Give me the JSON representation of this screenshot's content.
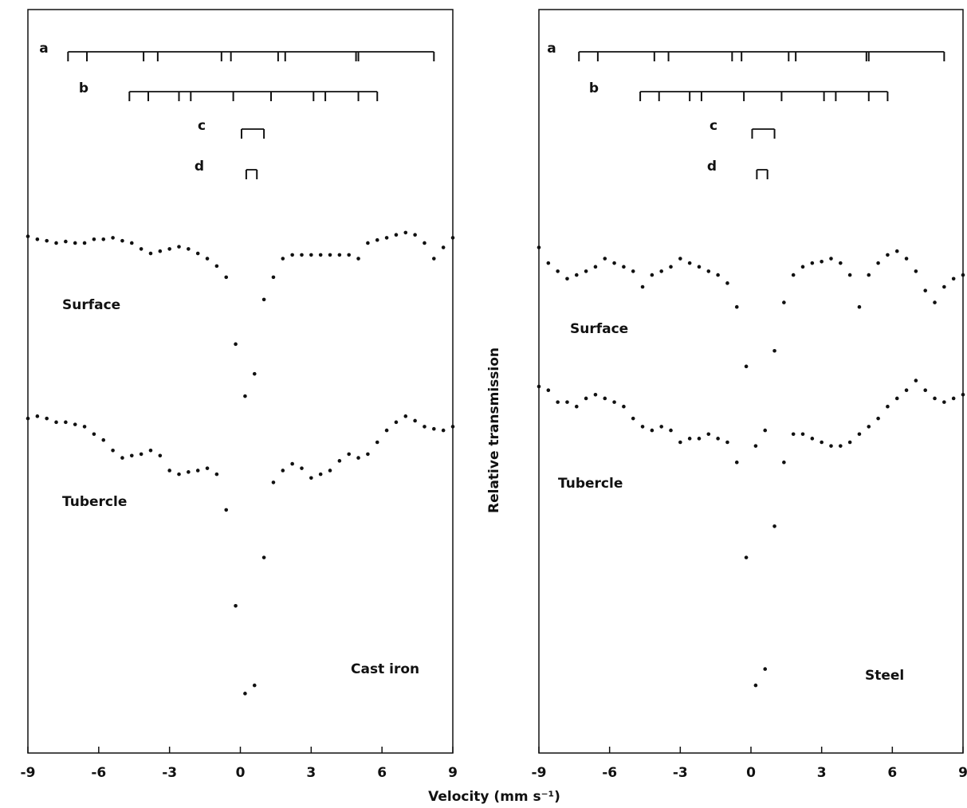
{
  "chart_data": [
    {
      "type": "scatter",
      "annotation": "Cast iron",
      "x": [
        -9,
        -8.6,
        -8.2,
        -7.8,
        -7.4,
        -7,
        -6.6,
        -6.2,
        -5.8,
        -5.4,
        -5,
        -4.6,
        -4.2,
        -3.8,
        -3.4,
        -3,
        -2.6,
        -2.2,
        -1.8,
        -1.4,
        -1,
        -0.6,
        -0.2,
        0.2,
        0.6,
        1,
        1.4,
        1.8,
        2.2,
        2.6,
        3,
        3.4,
        3.8,
        4.2,
        4.6,
        5,
        5.4,
        5.8,
        6.2,
        6.6,
        7,
        7.4,
        7.8,
        8.2,
        8.6,
        9
      ],
      "series": [
        {
          "name": "Surface",
          "color": "#111111",
          "values": [
            69.5,
            69.1,
            68.9,
            68.6,
            68.8,
            68.6,
            68.6,
            69.1,
            69.1,
            69.3,
            68.9,
            68.6,
            67.8,
            67.2,
            67.5,
            67.8,
            68.1,
            67.8,
            67.2,
            66.5,
            65.5,
            64,
            55,
            48,
            51,
            61,
            64,
            66.5,
            67,
            67,
            67,
            67,
            67,
            67,
            67,
            66.5,
            68.6,
            69,
            69.3,
            69.7,
            70,
            69.7,
            68.6,
            66.5,
            68,
            69.3
          ]
        },
        {
          "name": "Tubercle",
          "color": "#111111",
          "values": [
            45,
            45.3,
            45,
            44.5,
            44.5,
            44.2,
            43.9,
            42.9,
            42.1,
            40.7,
            39.7,
            40,
            40.2,
            40.7,
            40,
            38,
            37.5,
            37.8,
            38,
            38.3,
            37.5,
            32.7,
            19.8,
            8,
            9.1,
            26.3,
            36.4,
            38,
            38.9,
            38.3,
            37,
            37.5,
            38,
            39.3,
            40.2,
            39.7,
            40.2,
            41.8,
            43.4,
            44.5,
            45.3,
            44.7,
            43.9,
            43.6,
            43.4,
            43.9
          ]
        }
      ],
      "markers": [
        {
          "label": "a",
          "positions": [
            -7.3,
            -6.5,
            -4.1,
            -3.5,
            -0.8,
            -0.4,
            1.6,
            1.9,
            4.9,
            5.0,
            8.2
          ]
        },
        {
          "label": "b",
          "positions": [
            -4.7,
            -3.9,
            -2.6,
            -2.1,
            -0.3,
            1.3,
            3.1,
            3.6,
            5.0,
            5.8
          ]
        },
        {
          "label": "c",
          "positions": [
            0.05,
            1.0
          ]
        },
        {
          "label": "d",
          "positions": [
            0.25,
            0.7
          ]
        }
      ],
      "xlim": [
        -9,
        9
      ],
      "xticks": [
        -9,
        -6,
        -3,
        0,
        3,
        6,
        9
      ],
      "ylim": [
        0,
        100
      ]
    },
    {
      "type": "scatter",
      "annotation": "Steel",
      "x": [
        -9,
        -8.6,
        -8.2,
        -7.8,
        -7.4,
        -7,
        -6.6,
        -6.2,
        -5.8,
        -5.4,
        -5,
        -4.6,
        -4.2,
        -3.8,
        -3.4,
        -3,
        -2.6,
        -2.2,
        -1.8,
        -1.4,
        -1,
        -0.6,
        -0.2,
        0.2,
        0.6,
        1,
        1.4,
        1.8,
        2.2,
        2.6,
        3,
        3.4,
        3.8,
        4.2,
        4.6,
        5,
        5.4,
        5.8,
        6.2,
        6.6,
        7,
        7.4,
        7.8,
        8.2,
        8.6,
        9
      ],
      "series": [
        {
          "name": "Surface",
          "color": "#111111",
          "values": [
            68,
            65.9,
            64.8,
            63.8,
            64.3,
            64.8,
            65.4,
            66.5,
            65.9,
            65.4,
            64.8,
            62.7,
            64.3,
            64.8,
            65.4,
            66.5,
            65.9,
            65.4,
            64.8,
            64.3,
            63.2,
            60,
            52,
            41.3,
            43.4,
            54.1,
            60.6,
            64.3,
            65.4,
            65.9,
            66.1,
            66.5,
            65.9,
            64.3,
            60,
            64.3,
            65.9,
            67,
            67.5,
            66.5,
            64.8,
            62.2,
            60.6,
            62.7,
            63.8,
            64.3
          ]
        },
        {
          "name": "Tubercle",
          "color": "#111111",
          "values": [
            49.3,
            48.8,
            47.2,
            47.2,
            46.6,
            47.7,
            48.2,
            47.7,
            47.2,
            46.6,
            45,
            43.9,
            43.4,
            43.9,
            43.4,
            41.8,
            42.3,
            42.3,
            42.9,
            42.3,
            41.8,
            39.1,
            26.3,
            9.1,
            11.3,
            30.5,
            39.1,
            42.9,
            42.9,
            42.3,
            41.8,
            41.3,
            41.3,
            41.8,
            42.9,
            43.9,
            45,
            46.6,
            47.7,
            48.8,
            50.1,
            48.8,
            47.7,
            47.2,
            47.7,
            48.2
          ]
        }
      ],
      "markers": [
        {
          "label": "a",
          "positions": [
            -7.3,
            -6.5,
            -4.1,
            -3.5,
            -0.8,
            -0.4,
            1.6,
            1.9,
            4.9,
            5.0,
            8.2
          ]
        },
        {
          "label": "b",
          "positions": [
            -4.7,
            -3.9,
            -2.6,
            -2.1,
            -0.3,
            1.3,
            3.1,
            3.6,
            5.0,
            5.8
          ]
        },
        {
          "label": "c",
          "positions": [
            0.05,
            1.0
          ]
        },
        {
          "label": "d",
          "positions": [
            0.25,
            0.7
          ]
        }
      ],
      "xlim": [
        -9,
        9
      ],
      "xticks": [
        -9,
        -6,
        -3,
        0,
        3,
        6,
        9
      ],
      "ylim": [
        0,
        100
      ]
    }
  ],
  "x_label": "Velocity (mm s⁻¹)",
  "y_label": "Relative transmission"
}
